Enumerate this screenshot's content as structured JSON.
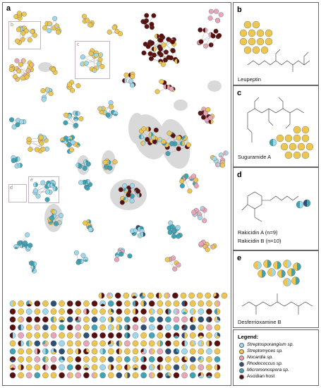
{
  "panels": {
    "a": {
      "label": "a"
    },
    "b": {
      "label": "b",
      "caption": "Leupeptin"
    },
    "c": {
      "label": "c",
      "caption": "Suguramide A"
    },
    "d": {
      "label": "d",
      "caption_line1": "Rakicidin A (n=9)",
      "caption_line2": "Rakicidin B (n=10)"
    },
    "e": {
      "label": "e",
      "caption": "Desferrioxamine B"
    }
  },
  "zoom_labels": {
    "b": "b",
    "c": "c",
    "d": "d",
    "e": "e"
  },
  "legend": {
    "title": "Legend:",
    "items": [
      {
        "label": "Streptosporangium sp.",
        "color": "#9fd8ea"
      },
      {
        "label": "Streptomyces sp.",
        "color": "#ecc650"
      },
      {
        "label": "Nocardia sp.",
        "color": "#e7a6b8"
      },
      {
        "label": "Rhodococcus sp.",
        "color": "#2c4f73"
      },
      {
        "label": "Micromonospora sp.",
        "color": "#3ea3b4"
      },
      {
        "label": "Ascidian host",
        "color": "#5a0f0f"
      }
    ]
  },
  "node_colors": {
    "streptosporangium": "#9fd8ea",
    "streptomyces": "#ecc650",
    "nocardia": "#e7a6b8",
    "rhodococcus": "#2c4f73",
    "micromonospora": "#3ea3b4",
    "host": "#5a0f0f"
  },
  "edge_color": "#9a9a9a",
  "highlight_color": "#d9d9d9"
}
